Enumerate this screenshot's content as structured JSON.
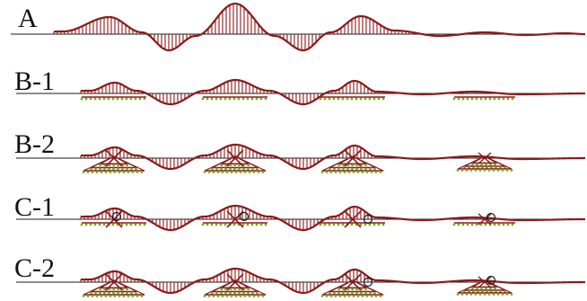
{
  "figure": {
    "rows": [
      {
        "id": "A",
        "label": "A"
      },
      {
        "id": "B-1",
        "label": "B-1"
      },
      {
        "id": "B-2",
        "label": "B-2"
      },
      {
        "id": "C-1",
        "label": "C-1"
      },
      {
        "id": "C-2",
        "label": "C-2"
      }
    ]
  },
  "colors": {
    "moment_curve": "#8b1a1a",
    "hatching": "#8b1a1a",
    "beam_axis": "#1a1a1a",
    "support_nodes": "#6fae2a",
    "label_text": "#111111",
    "background": "#ffffff"
  }
}
